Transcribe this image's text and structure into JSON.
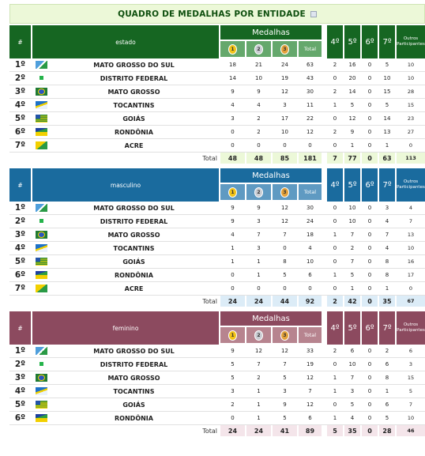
{
  "title": "QUADRO DE MEDALHAS POR ENTIDADE",
  "headers": {
    "hash": "#",
    "medalhas": "Medalhas",
    "medal_gold": "1",
    "medal_silver": "2",
    "medal_bronze": "3",
    "total": "Total",
    "p4": "4º",
    "p5": "5º",
    "p6": "6º",
    "p7": "7º",
    "outros": "Outros Participantes",
    "total_row_label": "Total"
  },
  "colors": {
    "estado_header": "#166622",
    "estado_sub": "#65a86c",
    "estado_total_bg": "#ecf8d8",
    "masculino_header": "#1a6b9e",
    "masculino_sub": "#5f9ac2",
    "masculino_total_bg": "#dcecf7",
    "feminino_header": "#8c4a5f",
    "feminino_sub": "#b7848f",
    "feminino_total_bg": "#f4e5ea"
  },
  "tables": [
    {
      "category": "estado",
      "rows": [
        {
          "pos": "1º",
          "flag": "ms-flag-icon",
          "name": "MATO GROSSO DO SUL",
          "ouro": "18",
          "prata": "21",
          "bronze": "24",
          "total": "63",
          "p4": "2",
          "p5": "16",
          "p6": "0",
          "p7": "5",
          "outros": "10"
        },
        {
          "pos": "2º",
          "flag": "df-flag-icon",
          "name": "DISTRITO FEDERAL",
          "ouro": "14",
          "prata": "10",
          "bronze": "19",
          "total": "43",
          "p4": "0",
          "p5": "20",
          "p6": "0",
          "p7": "10",
          "outros": "10"
        },
        {
          "pos": "3º",
          "flag": "mt-flag-icon",
          "name": "MATO GROSSO",
          "ouro": "9",
          "prata": "9",
          "bronze": "12",
          "total": "30",
          "p4": "2",
          "p5": "14",
          "p6": "0",
          "p7": "15",
          "outros": "28"
        },
        {
          "pos": "4º",
          "flag": "to-flag-icon",
          "name": "TOCANTINS",
          "ouro": "4",
          "prata": "4",
          "bronze": "3",
          "total": "11",
          "p4": "1",
          "p5": "5",
          "p6": "0",
          "p7": "5",
          "outros": "15"
        },
        {
          "pos": "5º",
          "flag": "go-flag-icon",
          "name": "GOIÁS",
          "ouro": "3",
          "prata": "2",
          "bronze": "17",
          "total": "22",
          "p4": "0",
          "p5": "12",
          "p6": "0",
          "p7": "14",
          "outros": "23"
        },
        {
          "pos": "6º",
          "flag": "ro-flag-icon",
          "name": "RONDÔNIA",
          "ouro": "0",
          "prata": "2",
          "bronze": "10",
          "total": "12",
          "p4": "2",
          "p5": "9",
          "p6": "0",
          "p7": "13",
          "outros": "27"
        },
        {
          "pos": "7º",
          "flag": "ac-flag-icon",
          "name": "ACRE",
          "ouro": "0",
          "prata": "0",
          "bronze": "0",
          "total": "0",
          "p4": "0",
          "p5": "1",
          "p6": "0",
          "p7": "1",
          "outros": "0"
        }
      ],
      "totals": {
        "ouro": "48",
        "prata": "48",
        "bronze": "85",
        "total": "181",
        "p4": "7",
        "p5": "77",
        "p6": "0",
        "p7": "63",
        "outros": "113"
      }
    },
    {
      "category": "masculino",
      "rows": [
        {
          "pos": "1º",
          "flag": "ms-flag-icon",
          "name": "MATO GROSSO DO SUL",
          "ouro": "9",
          "prata": "9",
          "bronze": "12",
          "total": "30",
          "p4": "0",
          "p5": "10",
          "p6": "0",
          "p7": "3",
          "outros": "4"
        },
        {
          "pos": "2º",
          "flag": "df-flag-icon",
          "name": "DISTRITO FEDERAL",
          "ouro": "9",
          "prata": "3",
          "bronze": "12",
          "total": "24",
          "p4": "0",
          "p5": "10",
          "p6": "0",
          "p7": "4",
          "outros": "7"
        },
        {
          "pos": "3º",
          "flag": "mt-flag-icon",
          "name": "MATO GROSSO",
          "ouro": "4",
          "prata": "7",
          "bronze": "7",
          "total": "18",
          "p4": "1",
          "p5": "7",
          "p6": "0",
          "p7": "7",
          "outros": "13"
        },
        {
          "pos": "4º",
          "flag": "to-flag-icon",
          "name": "TOCANTINS",
          "ouro": "1",
          "prata": "3",
          "bronze": "0",
          "total": "4",
          "p4": "0",
          "p5": "2",
          "p6": "0",
          "p7": "4",
          "outros": "10"
        },
        {
          "pos": "5º",
          "flag": "go-flag-icon",
          "name": "GOIÁS",
          "ouro": "1",
          "prata": "1",
          "bronze": "8",
          "total": "10",
          "p4": "0",
          "p5": "7",
          "p6": "0",
          "p7": "8",
          "outros": "16"
        },
        {
          "pos": "6º",
          "flag": "ro-flag-icon",
          "name": "RONDÔNIA",
          "ouro": "0",
          "prata": "1",
          "bronze": "5",
          "total": "6",
          "p4": "1",
          "p5": "5",
          "p6": "0",
          "p7": "8",
          "outros": "17"
        },
        {
          "pos": "7º",
          "flag": "ac-flag-icon",
          "name": "ACRE",
          "ouro": "0",
          "prata": "0",
          "bronze": "0",
          "total": "0",
          "p4": "0",
          "p5": "1",
          "p6": "0",
          "p7": "1",
          "outros": "0"
        }
      ],
      "totals": {
        "ouro": "24",
        "prata": "24",
        "bronze": "44",
        "total": "92",
        "p4": "2",
        "p5": "42",
        "p6": "0",
        "p7": "35",
        "outros": "67"
      }
    },
    {
      "category": "feminino",
      "rows": [
        {
          "pos": "1º",
          "flag": "ms-flag-icon",
          "name": "MATO GROSSO DO SUL",
          "ouro": "9",
          "prata": "12",
          "bronze": "12",
          "total": "33",
          "p4": "2",
          "p5": "6",
          "p6": "0",
          "p7": "2",
          "outros": "6"
        },
        {
          "pos": "2º",
          "flag": "df-flag-icon",
          "name": "DISTRITO FEDERAL",
          "ouro": "5",
          "prata": "7",
          "bronze": "7",
          "total": "19",
          "p4": "0",
          "p5": "10",
          "p6": "0",
          "p7": "6",
          "outros": "3"
        },
        {
          "pos": "3º",
          "flag": "mt-flag-icon",
          "name": "MATO GROSSO",
          "ouro": "5",
          "prata": "2",
          "bronze": "5",
          "total": "12",
          "p4": "1",
          "p5": "7",
          "p6": "0",
          "p7": "8",
          "outros": "15"
        },
        {
          "pos": "4º",
          "flag": "to-flag-icon",
          "name": "TOCANTINS",
          "ouro": "3",
          "prata": "1",
          "bronze": "3",
          "total": "7",
          "p4": "1",
          "p5": "3",
          "p6": "0",
          "p7": "1",
          "outros": "5"
        },
        {
          "pos": "5º",
          "flag": "go-flag-icon",
          "name": "GOIÁS",
          "ouro": "2",
          "prata": "1",
          "bronze": "9",
          "total": "12",
          "p4": "0",
          "p5": "5",
          "p6": "0",
          "p7": "6",
          "outros": "7"
        },
        {
          "pos": "6º",
          "flag": "ro-flag-icon",
          "name": "RONDÔNIA",
          "ouro": "0",
          "prata": "1",
          "bronze": "5",
          "total": "6",
          "p4": "1",
          "p5": "4",
          "p6": "0",
          "p7": "5",
          "outros": "10"
        }
      ],
      "totals": {
        "ouro": "24",
        "prata": "24",
        "bronze": "41",
        "total": "89",
        "p4": "5",
        "p5": "35",
        "p6": "0",
        "p7": "28",
        "outros": "46"
      }
    }
  ]
}
